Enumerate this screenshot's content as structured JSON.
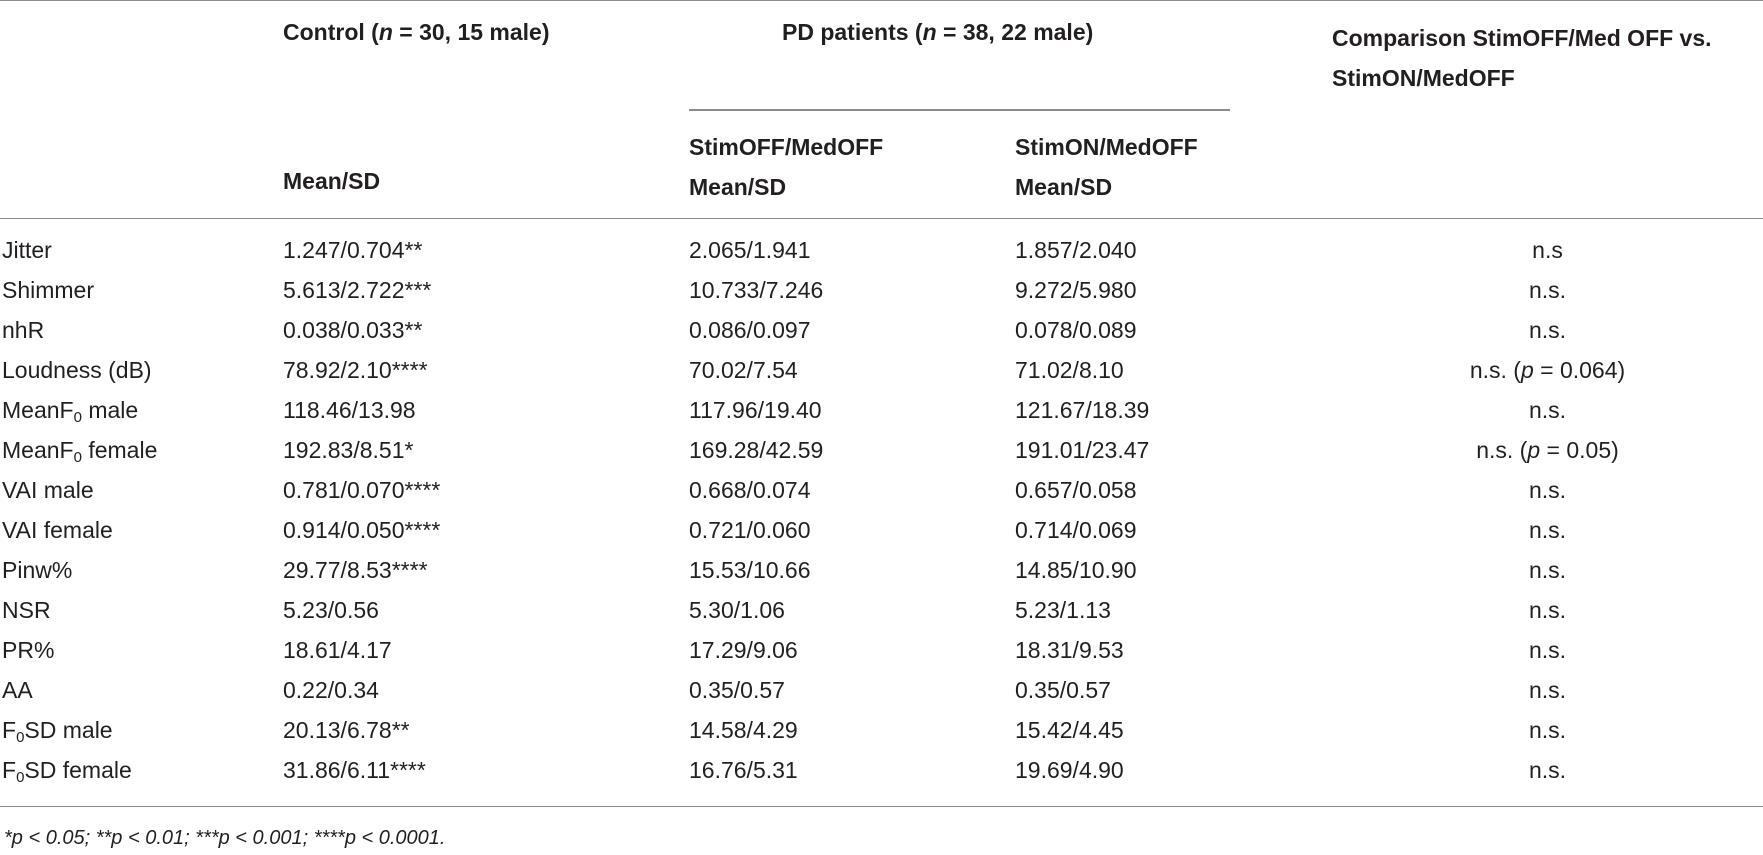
{
  "header": {
    "control_prefix": "Control (",
    "control_n": "n",
    "control_suffix": " = 30, 15 male)",
    "pd_prefix": "PD patients (",
    "pd_n": "n",
    "pd_suffix": " = 38, 22 male)",
    "comparison_line1": "Comparison StimOFF/Med OFF vs.",
    "comparison_line2": "StimON/MedOFF",
    "sub_control": "Mean/SD",
    "sub_off_line1": "StimOFF/MedOFF",
    "sub_off_line2": "Mean/SD",
    "sub_on_line1": "StimON/MedOFF",
    "sub_on_line2": "Mean/SD"
  },
  "rows": [
    {
      "label": "Jitter",
      "label_sub": "",
      "label_rest": "",
      "control": "1.247/0.704**",
      "off": "2.065/1.941",
      "on": "1.857/2.040",
      "cmp": "n.s",
      "cmp_p": "",
      "cmp_rest": ""
    },
    {
      "label": "Shimmer",
      "label_sub": "",
      "label_rest": "",
      "control": "5.613/2.722***",
      "off": "10.733/7.246",
      "on": "9.272/5.980",
      "cmp": "n.s.",
      "cmp_p": "",
      "cmp_rest": ""
    },
    {
      "label": "nhR",
      "label_sub": "",
      "label_rest": "",
      "control": "0.038/0.033**",
      "off": "0.086/0.097",
      "on": "0.078/0.089",
      "cmp": "n.s.",
      "cmp_p": "",
      "cmp_rest": ""
    },
    {
      "label": "Loudness (dB)",
      "label_sub": "",
      "label_rest": "",
      "control": "78.92/2.10****",
      "off": "70.02/7.54",
      "on": "71.02/8.10",
      "cmp": "n.s. (",
      "cmp_p": "p",
      "cmp_rest": " = 0.064)"
    },
    {
      "label": "MeanF",
      "label_sub": "0",
      "label_rest": " male",
      "control": "118.46/13.98",
      "off": "117.96/19.40",
      "on": "121.67/18.39",
      "cmp": "n.s.",
      "cmp_p": "",
      "cmp_rest": ""
    },
    {
      "label": "MeanF",
      "label_sub": "0",
      "label_rest": " female",
      "control": "192.83/8.51*",
      "off": "169.28/42.59",
      "on": "191.01/23.47",
      "cmp": "n.s. (",
      "cmp_p": "p",
      "cmp_rest": " = 0.05)"
    },
    {
      "label": "VAI male",
      "label_sub": "",
      "label_rest": "",
      "control": "0.781/0.070****",
      "off": "0.668/0.074",
      "on": "0.657/0.058",
      "cmp": "n.s.",
      "cmp_p": "",
      "cmp_rest": ""
    },
    {
      "label": "VAI female",
      "label_sub": "",
      "label_rest": "",
      "control": "0.914/0.050****",
      "off": "0.721/0.060",
      "on": "0.714/0.069",
      "cmp": "n.s.",
      "cmp_p": "",
      "cmp_rest": ""
    },
    {
      "label": "Pinw%",
      "label_sub": "",
      "label_rest": "",
      "control": "29.77/8.53****",
      "off": "15.53/10.66",
      "on": "14.85/10.90",
      "cmp": "n.s.",
      "cmp_p": "",
      "cmp_rest": ""
    },
    {
      "label": "NSR",
      "label_sub": "",
      "label_rest": "",
      "control": "5.23/0.56",
      "off": "5.30/1.06",
      "on": "5.23/1.13",
      "cmp": "n.s.",
      "cmp_p": "",
      "cmp_rest": ""
    },
    {
      "label": "PR%",
      "label_sub": "",
      "label_rest": "",
      "control": "18.61/4.17",
      "off": "17.29/9.06",
      "on": "18.31/9.53",
      "cmp": "n.s.",
      "cmp_p": "",
      "cmp_rest": ""
    },
    {
      "label": "AA",
      "label_sub": "",
      "label_rest": "",
      "control": "0.22/0.34",
      "off": "0.35/0.57",
      "on": "0.35/0.57",
      "cmp": "n.s.",
      "cmp_p": "",
      "cmp_rest": ""
    },
    {
      "label": "F",
      "label_sub": "0",
      "label_rest": "SD male",
      "control": "20.13/6.78**",
      "off": "14.58/4.29",
      "on": "15.42/4.45",
      "cmp": "n.s.",
      "cmp_p": "",
      "cmp_rest": ""
    },
    {
      "label": "F",
      "label_sub": "0",
      "label_rest": "SD female",
      "control": "31.86/6.11****",
      "off": "16.76/5.31",
      "on": "19.69/4.90",
      "cmp": "n.s.",
      "cmp_p": "",
      "cmp_rest": ""
    }
  ],
  "footnote": "*p < 0.05; **p < 0.01; ***p < 0.001; ****p < 0.0001.",
  "colors": {
    "rule": "#8c8c8c",
    "text": "#231f20"
  }
}
